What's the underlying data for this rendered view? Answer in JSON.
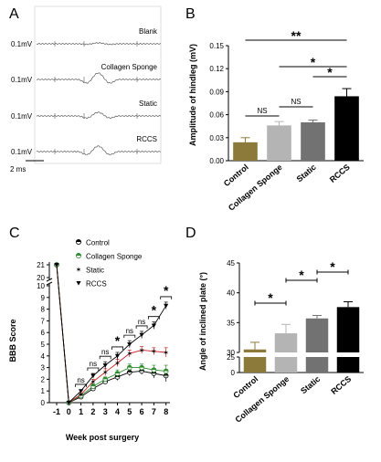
{
  "chart_data": [
    {
      "panel": "A",
      "type": "line",
      "traces": [
        {
          "name": "Blank",
          "scale": "0.1mV"
        },
        {
          "name": "Collagen Sponge",
          "scale": "0.1mV"
        },
        {
          "name": "Static",
          "scale": "0.1mV"
        },
        {
          "name": "RCCS",
          "scale": "0.1mV"
        }
      ],
      "time_scale": "2 ms"
    },
    {
      "panel": "B",
      "type": "bar",
      "categories": [
        "Control",
        "Collagen Sponge",
        "Static",
        "RCCS"
      ],
      "values": [
        0.024,
        0.046,
        0.05,
        0.084
      ],
      "errors": [
        0.006,
        0.005,
        0.003,
        0.01
      ],
      "colors": [
        "#8c7a3a",
        "#b4b4b4",
        "#727272",
        "#000000"
      ],
      "ylabel": "Amplitude of hindleg (mV)",
      "ylim": [
        0,
        0.15
      ],
      "yticks": [
        "0.00",
        "0.03",
        "0.06",
        "0.09",
        "0.12",
        "0.15"
      ],
      "comparisons": [
        {
          "from": 0,
          "to": 1,
          "label": "NS"
        },
        {
          "from": 1,
          "to": 2,
          "label": "NS"
        },
        {
          "from": 2,
          "to": 3,
          "label": "*"
        },
        {
          "from": 1,
          "to": 3,
          "label": "*"
        },
        {
          "from": 0,
          "to": 3,
          "label": "**"
        }
      ]
    },
    {
      "panel": "C",
      "type": "line",
      "x": [
        -1,
        0,
        1,
        2,
        3,
        4,
        5,
        6,
        7,
        8
      ],
      "xticks": [
        "-1",
        "0",
        "1",
        "2",
        "3",
        "4",
        "5",
        "6",
        "7",
        "8"
      ],
      "yticks_lower": [
        "0",
        "1",
        "2",
        "3",
        "4",
        "5",
        "6",
        "7",
        "8",
        "9",
        "10"
      ],
      "yticks_upper": [
        "20",
        "21"
      ],
      "series": [
        {
          "name": "Control",
          "values": [
            21,
            0,
            0.5,
            1.2,
            1.8,
            2.2,
            2.6,
            2.7,
            2.5,
            2.3
          ],
          "errors": [
            0,
            0,
            0.1,
            0.2,
            0.2,
            0.3,
            0.3,
            0.3,
            0.4,
            0.5
          ]
        },
        {
          "name": "Collagen Sponge",
          "values": [
            21,
            0,
            0.6,
            1.4,
            2.0,
            2.5,
            3.0,
            3.0,
            2.8,
            2.7
          ],
          "errors": [
            0,
            0,
            0.1,
            0.2,
            0.2,
            0.3,
            0.3,
            0.3,
            0.4,
            0.5
          ]
        },
        {
          "name": "Static",
          "values": [
            21,
            0,
            0.7,
            1.8,
            2.6,
            3.4,
            4.2,
            4.5,
            4.4,
            4.3
          ],
          "errors": [
            0,
            0,
            0.1,
            0.2,
            0.3,
            0.3,
            0.3,
            0.3,
            0.3,
            0.4
          ]
        },
        {
          "name": "RCCS",
          "values": [
            21,
            0,
            1.0,
            2.3,
            3.2,
            4.0,
            5.0,
            5.8,
            6.6,
            8.3
          ],
          "errors": [
            0,
            0,
            0.1,
            0.2,
            0.3,
            0.3,
            0.3,
            0.3,
            0.3,
            0.3
          ]
        }
      ],
      "sig_labels": [
        {
          "x": 1,
          "label": "ns"
        },
        {
          "x": 2,
          "label": "ns"
        },
        {
          "x": 3,
          "label": "ns"
        },
        {
          "x": 4,
          "label": "*"
        },
        {
          "x": 5,
          "label": "ns"
        },
        {
          "x": 6,
          "label": "ns"
        },
        {
          "x": 7,
          "label": "*"
        },
        {
          "x": 8,
          "label": "*"
        }
      ],
      "xlabel": "Week post surgery",
      "ylabel": "BBB  Score"
    },
    {
      "panel": "D",
      "type": "bar",
      "categories": [
        "Control",
        "Collagen Sponge",
        "Static",
        "RCCS"
      ],
      "values": [
        30.5,
        33.2,
        35.7,
        37.6
      ],
      "errors": [
        1.2,
        1.5,
        0.5,
        0.9
      ],
      "colors": [
        "#8c7a3a",
        "#b4b4b4",
        "#727272",
        "#000000"
      ],
      "ylabel": "Angle of inclined plate (°)",
      "yticks_lower": [
        "0",
        "25"
      ],
      "yticks_upper": [
        "30",
        "35",
        "40",
        "45"
      ],
      "comparisons": [
        {
          "from": 0,
          "to": 1,
          "label": "*"
        },
        {
          "from": 1,
          "to": 2,
          "label": "*"
        },
        {
          "from": 2,
          "to": 3,
          "label": "*"
        }
      ]
    }
  ]
}
